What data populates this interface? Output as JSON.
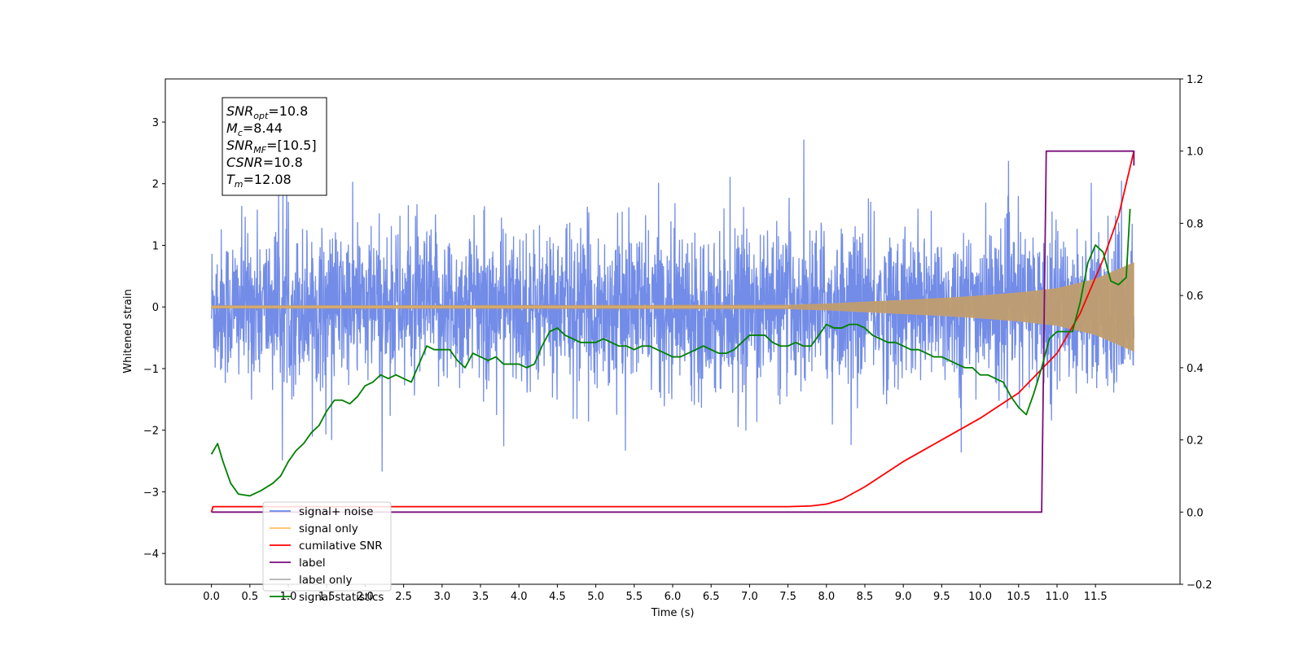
{
  "chart_data": {
    "type": "line",
    "xlabel": "Time (s)",
    "ylabel_left": "Whitened strain",
    "ylabel_right": "",
    "xlim": [
      -0.6,
      12.6
    ],
    "ylim_left": [
      -4.5,
      3.7
    ],
    "ylim_right": [
      -0.2,
      1.2
    ],
    "x_ticks": [
      0.0,
      0.5,
      1.0,
      1.5,
      2.0,
      2.5,
      3.0,
      3.5,
      4.0,
      4.5,
      5.0,
      5.5,
      6.0,
      6.5,
      7.0,
      7.5,
      8.0,
      8.5,
      9.0,
      9.5,
      10.0,
      10.5,
      11.0,
      11.5
    ],
    "x_tick_labels": [
      "0.0",
      "0.5",
      "1.0",
      "1.5",
      "2.0",
      "2.5",
      "3.0",
      "3.5",
      "4.0",
      "4.5",
      "5.0",
      "5.5",
      "6.0",
      "6.5",
      "7.0",
      "7.5",
      "8.0",
      "8.5",
      "9.0",
      "9.5",
      "10.0",
      "10.5",
      "11.0",
      "11.5"
    ],
    "y_left_ticks": [
      3,
      2,
      1,
      0,
      -1,
      -2,
      -3,
      -4
    ],
    "y_left_tick_labels": [
      "3",
      "2",
      "1",
      "0",
      "−1",
      "−2",
      "−3",
      "−4"
    ],
    "y_right_ticks": [
      1.2,
      1.0,
      0.8,
      0.6,
      0.4,
      0.2,
      0.0,
      -0.2
    ],
    "y_right_tick_labels": [
      "1.2",
      "1.0",
      "0.8",
      "0.6",
      "0.4",
      "0.2",
      "0.0",
      "−0.2"
    ],
    "grid": false,
    "legend": {
      "placement": "lower-left",
      "entries": [
        {
          "label": "signal+ noise",
          "color": "#6a86e6"
        },
        {
          "label": "signal only",
          "color": "#ffbf60"
        },
        {
          "label": "cumilative SNR",
          "color": "#ff0000"
        },
        {
          "label": "label",
          "color": "#7a0e7a"
        },
        {
          "label": "label only",
          "color": "#b3b3b3"
        },
        {
          "label": "signal statistics",
          "color": "#008000"
        }
      ]
    },
    "stats_box": {
      "lines": [
        {
          "base": "SNR",
          "sub": "opt",
          "value": "=10.8"
        },
        {
          "base": "M",
          "sub": "c",
          "value": "=8.44"
        },
        {
          "base": "SNR",
          "sub": "MF",
          "value": "=[10.5]"
        },
        {
          "base": "CSNR",
          "sub": "",
          "value": "=10.8"
        },
        {
          "base": "T",
          "sub": "m",
          "value": "=12.08"
        }
      ]
    },
    "series": [
      {
        "name": "signal+ noise",
        "axis": "left",
        "color": "#6a86e6",
        "style": "noise",
        "x_range": [
          0.0,
          12.0
        ],
        "typical_range": [
          -1.5,
          1.4
        ],
        "max": 3.3,
        "min": -4.1
      },
      {
        "name": "signal only",
        "axis": "left",
        "color": "#ffbf60",
        "style": "envelope",
        "x": [
          0.0,
          7.5,
          8.0,
          8.5,
          9.0,
          9.5,
          10.0,
          10.5,
          11.0,
          11.5,
          12.0
        ],
        "amplitude": [
          0.02,
          0.03,
          0.05,
          0.08,
          0.11,
          0.14,
          0.18,
          0.23,
          0.3,
          0.45,
          0.72
        ]
      },
      {
        "name": "cumilative SNR",
        "axis": "right",
        "color": "#ff0000",
        "style": "line",
        "x": [
          0.0,
          0.02,
          7.5,
          7.8,
          8.0,
          8.2,
          8.5,
          9.0,
          9.5,
          10.0,
          10.5,
          11.0,
          11.3,
          11.6,
          11.8,
          12.0
        ],
        "values": [
          0.0,
          0.015,
          0.015,
          0.017,
          0.022,
          0.035,
          0.07,
          0.14,
          0.2,
          0.26,
          0.33,
          0.44,
          0.55,
          0.7,
          0.82,
          1.0
        ]
      },
      {
        "name": "label",
        "axis": "right",
        "color": "#7a0e7a",
        "style": "line",
        "x": [
          0.0,
          10.8,
          10.86,
          12.0,
          12.0
        ],
        "values": [
          0.0,
          0.0,
          1.0,
          1.0,
          0.96
        ]
      },
      {
        "name": "signal statistics",
        "axis": "right",
        "color": "#008000",
        "style": "line",
        "x": [
          0.0,
          0.08,
          0.15,
          0.25,
          0.35,
          0.5,
          0.65,
          0.8,
          0.9,
          1.0,
          1.1,
          1.2,
          1.3,
          1.4,
          1.5,
          1.6,
          1.7,
          1.8,
          1.9,
          2.0,
          2.1,
          2.2,
          2.3,
          2.4,
          2.5,
          2.6,
          2.7,
          2.8,
          2.9,
          3.0,
          3.1,
          3.2,
          3.3,
          3.4,
          3.5,
          3.6,
          3.7,
          3.8,
          3.9,
          4.0,
          4.1,
          4.2,
          4.3,
          4.4,
          4.5,
          4.6,
          4.7,
          4.8,
          4.9,
          5.0,
          5.1,
          5.2,
          5.3,
          5.4,
          5.5,
          5.6,
          5.7,
          5.8,
          5.9,
          6.0,
          6.1,
          6.2,
          6.3,
          6.4,
          6.5,
          6.6,
          6.7,
          6.8,
          6.9,
          7.0,
          7.1,
          7.2,
          7.3,
          7.4,
          7.5,
          7.6,
          7.7,
          7.8,
          7.9,
          8.0,
          8.1,
          8.2,
          8.3,
          8.4,
          8.5,
          8.6,
          8.7,
          8.8,
          8.9,
          9.0,
          9.1,
          9.2,
          9.3,
          9.4,
          9.5,
          9.6,
          9.7,
          9.8,
          9.9,
          10.0,
          10.1,
          10.2,
          10.3,
          10.4,
          10.5,
          10.6,
          10.7,
          10.8,
          10.9,
          11.0,
          11.1,
          11.2,
          11.3,
          11.4,
          11.5,
          11.6,
          11.7,
          11.8,
          11.9,
          11.95
        ],
        "values": [
          0.16,
          0.19,
          0.14,
          0.08,
          0.05,
          0.045,
          0.06,
          0.08,
          0.1,
          0.14,
          0.17,
          0.19,
          0.22,
          0.24,
          0.28,
          0.31,
          0.31,
          0.3,
          0.32,
          0.35,
          0.36,
          0.38,
          0.37,
          0.38,
          0.37,
          0.36,
          0.41,
          0.46,
          0.45,
          0.45,
          0.45,
          0.42,
          0.4,
          0.44,
          0.43,
          0.42,
          0.43,
          0.41,
          0.41,
          0.41,
          0.4,
          0.41,
          0.46,
          0.5,
          0.51,
          0.49,
          0.48,
          0.47,
          0.47,
          0.47,
          0.48,
          0.47,
          0.46,
          0.46,
          0.45,
          0.46,
          0.46,
          0.45,
          0.44,
          0.43,
          0.43,
          0.44,
          0.45,
          0.46,
          0.45,
          0.44,
          0.44,
          0.45,
          0.47,
          0.49,
          0.49,
          0.49,
          0.47,
          0.46,
          0.46,
          0.47,
          0.46,
          0.46,
          0.49,
          0.52,
          0.51,
          0.51,
          0.52,
          0.52,
          0.51,
          0.49,
          0.48,
          0.47,
          0.47,
          0.46,
          0.45,
          0.45,
          0.44,
          0.43,
          0.43,
          0.42,
          0.41,
          0.4,
          0.4,
          0.38,
          0.38,
          0.37,
          0.36,
          0.32,
          0.29,
          0.27,
          0.33,
          0.4,
          0.48,
          0.5,
          0.5,
          0.5,
          0.58,
          0.69,
          0.74,
          0.72,
          0.64,
          0.63,
          0.65,
          0.84
        ]
      }
    ]
  }
}
